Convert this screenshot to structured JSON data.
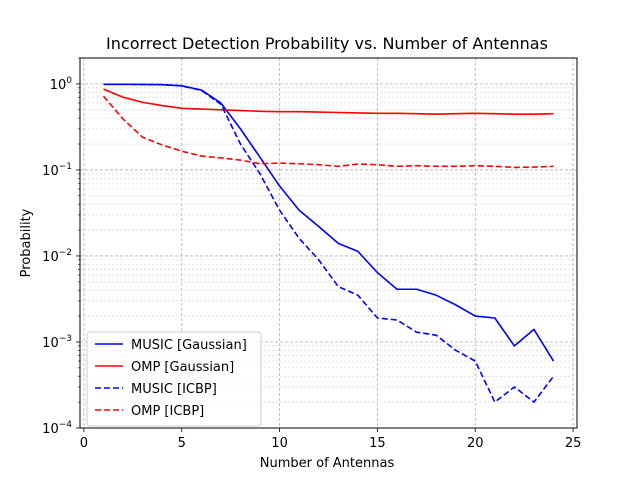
{
  "chart_data": {
    "type": "line",
    "title": "Incorrect Detection Probability vs. Number of Antennas",
    "xlabel": "Number of Antennas",
    "ylabel": "Probability",
    "xlim": [
      -0.2,
      25.2
    ],
    "ylim": [
      0.0001,
      2
    ],
    "yscale": "log",
    "grid": true,
    "legend_position": "bottom-left",
    "x_ticks": [
      0,
      5,
      10,
      15,
      20,
      25
    ],
    "y_ticks": [
      {
        "value": 0.0001,
        "base": "10",
        "exp": "−4"
      },
      {
        "value": 0.001,
        "base": "10",
        "exp": "−3"
      },
      {
        "value": 0.01,
        "base": "10",
        "exp": "−2"
      },
      {
        "value": 0.1,
        "base": "10",
        "exp": "−1"
      },
      {
        "value": 1,
        "base": "10",
        "exp": "0"
      }
    ],
    "x": [
      1,
      2,
      3,
      4,
      5,
      6,
      7,
      8,
      9,
      10,
      11,
      12,
      13,
      14,
      15,
      16,
      17,
      18,
      19,
      20,
      21,
      22,
      23,
      24
    ],
    "series": [
      {
        "name": "MUSIC [Gaussian]",
        "color": "#0000ff",
        "dash": "solid",
        "values": [
          0.99,
          0.99,
          0.985,
          0.98,
          0.95,
          0.85,
          0.6,
          0.3,
          0.14,
          0.065,
          0.034,
          0.022,
          0.014,
          0.0113,
          0.0064,
          0.0041,
          0.0041,
          0.0035,
          0.0027,
          0.002,
          0.0019,
          0.0009,
          0.0014,
          0.0006
        ]
      },
      {
        "name": "OMP [Gaussian]",
        "color": "#ff0000",
        "dash": "solid",
        "values": [
          0.87,
          0.7,
          0.61,
          0.56,
          0.52,
          0.51,
          0.5,
          0.49,
          0.48,
          0.475,
          0.475,
          0.47,
          0.465,
          0.46,
          0.455,
          0.455,
          0.45,
          0.445,
          0.45,
          0.455,
          0.45,
          0.445,
          0.445,
          0.45
        ]
      },
      {
        "name": "MUSIC [ICBP]",
        "color": "#0000ff",
        "dash": "dashed",
        "values": [
          0.99,
          0.99,
          0.985,
          0.98,
          0.95,
          0.84,
          0.58,
          0.2,
          0.09,
          0.034,
          0.016,
          0.009,
          0.0044,
          0.0035,
          0.0019,
          0.0018,
          0.0013,
          0.0012,
          0.0008,
          0.0006,
          0.0002,
          0.0003,
          0.0002,
          0.0004
        ]
      },
      {
        "name": "OMP [ICBP]",
        "color": "#ff0000",
        "dash": "dashed",
        "values": [
          0.72,
          0.39,
          0.24,
          0.195,
          0.165,
          0.145,
          0.138,
          0.13,
          0.118,
          0.12,
          0.118,
          0.115,
          0.11,
          0.117,
          0.115,
          0.11,
          0.112,
          0.11,
          0.11,
          0.112,
          0.11,
          0.107,
          0.108,
          0.11
        ]
      }
    ]
  }
}
